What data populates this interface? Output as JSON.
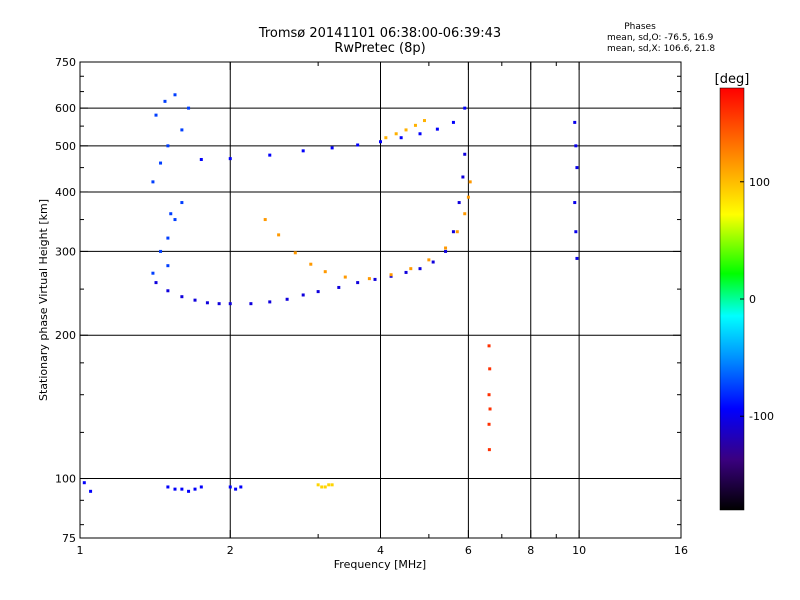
{
  "title_line1": "Tromsø 20141101 06:38:00-06:39:43",
  "title_line2": "RwPretec (8p)",
  "stats": {
    "heading": "Phases",
    "o_mode": "mean, sd,O: -76.5, 16.9",
    "x_mode": "mean, sd,X: 106.6, 21.8"
  },
  "colorbar": {
    "unit_label": "[deg]",
    "tick_labels": [
      "100",
      "0",
      "-100"
    ],
    "tick_values": [
      100,
      0,
      -100
    ],
    "range": [
      -180,
      180
    ]
  },
  "chart_data": {
    "type": "scatter",
    "xlabel": "Frequency [MHz]",
    "ylabel": "Stationary phase Virtual Height [km]",
    "x_scale": "log",
    "y_scale": "log",
    "xlim": [
      1,
      16
    ],
    "ylim": [
      75,
      750
    ],
    "x_ticks": [
      1,
      2,
      4,
      6,
      8,
      10,
      16
    ],
    "x_tick_labels": [
      "1",
      "2",
      "4",
      "6",
      "8",
      "10",
      "16"
    ],
    "y_ticks": [
      75,
      100,
      200,
      300,
      400,
      500,
      600,
      750
    ],
    "y_tick_labels": [
      "75",
      "100",
      "200",
      "300",
      "400",
      "500",
      "600",
      "750"
    ],
    "x_major_gridlines": [
      2,
      4,
      6,
      8,
      10
    ],
    "y_major_gridlines": [
      100,
      200,
      300,
      400,
      500,
      600
    ],
    "x_minor_ticks": [
      3,
      5,
      7,
      9
    ],
    "y_minor_ticks": [
      80,
      90,
      125,
      150,
      175,
      250,
      350,
      450,
      550,
      650,
      700
    ],
    "grid": true,
    "color_variable": "phase [deg]",
    "series": [
      {
        "label": "o_trace_low",
        "phase": -105,
        "x": [
          1.42,
          1.5,
          1.6,
          1.7,
          1.8,
          1.9,
          2.0,
          2.2,
          2.4,
          2.6,
          2.8,
          3.0,
          3.3,
          3.6,
          3.9,
          4.2,
          4.5,
          4.8,
          5.1,
          5.4,
          5.6,
          5.75,
          5.85,
          5.9
        ],
        "y": [
          258,
          248,
          241,
          237,
          234,
          233,
          233,
          233,
          235,
          238,
          243,
          247,
          252,
          258,
          262,
          266,
          271,
          276,
          285,
          300,
          330,
          380,
          430,
          480
        ]
      },
      {
        "label": "o_trace_top",
        "phase": -95,
        "x": [
          1.75,
          2.0,
          2.4,
          2.8,
          3.2,
          3.6,
          4.0,
          4.4,
          4.8,
          5.2,
          5.6,
          5.9
        ],
        "y": [
          468,
          470,
          478,
          488,
          495,
          502,
          510,
          520,
          530,
          542,
          560,
          600
        ]
      },
      {
        "label": "x_trace",
        "phase": 115,
        "x": [
          2.35,
          2.5,
          2.7,
          2.9,
          3.1,
          3.4,
          3.8,
          4.2,
          4.6,
          5.0,
          5.4,
          5.7,
          5.9,
          6.0,
          6.05
        ],
        "y": [
          350,
          325,
          298,
          282,
          272,
          265,
          263,
          268,
          276,
          288,
          305,
          330,
          360,
          390,
          420
        ]
      },
      {
        "label": "x_trace_top",
        "phase": 105,
        "x": [
          4.1,
          4.3,
          4.5,
          4.7,
          4.9
        ],
        "y": [
          520,
          530,
          540,
          552,
          565
        ]
      },
      {
        "label": "cusp_cluster",
        "phase": -75,
        "x": [
          1.45,
          1.5,
          1.55,
          1.6,
          1.4,
          1.45,
          1.5,
          1.6,
          1.42,
          1.48,
          1.55,
          1.65,
          1.5,
          1.4,
          1.52
        ],
        "y": [
          300,
          320,
          350,
          380,
          420,
          460,
          500,
          540,
          580,
          620,
          640,
          600,
          280,
          270,
          360
        ]
      },
      {
        "label": "low_band_100km",
        "phase": -95,
        "x": [
          1.5,
          1.55,
          1.6,
          1.65,
          1.7,
          1.75,
          2.0,
          2.05,
          2.1,
          1.02,
          1.05
        ],
        "y": [
          96,
          95,
          95,
          94,
          95,
          96,
          96,
          95,
          96,
          98,
          94
        ]
      },
      {
        "label": "es_layer_3mhz",
        "phase": 90,
        "x": [
          3.0,
          3.05,
          3.1,
          3.15,
          3.2
        ],
        "y": [
          97,
          96,
          96,
          97,
          97
        ]
      },
      {
        "label": "vertical_streak_6.6",
        "phase": 160,
        "x": [
          6.6,
          6.62,
          6.6,
          6.63,
          6.6,
          6.61
        ],
        "y": [
          190,
          170,
          150,
          140,
          130,
          115
        ]
      },
      {
        "label": "vertical_streak_10",
        "phase": -100,
        "x": [
          9.8,
          9.85,
          9.9,
          9.8,
          9.85,
          9.9
        ],
        "y": [
          560,
          500,
          450,
          380,
          330,
          290
        ]
      }
    ]
  }
}
